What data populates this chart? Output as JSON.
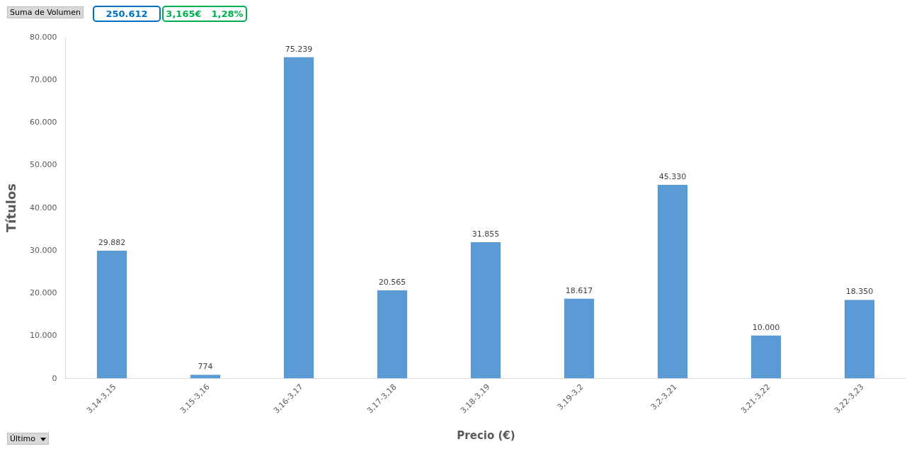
{
  "chart_data": {
    "type": "bar",
    "xlabel": "Precio (€)",
    "ylabel": "Títulos",
    "categories": [
      "3,14-3,15",
      "3,15-3,16",
      "3,16-3,17",
      "3,17-3,18",
      "3,18-3,19",
      "3,19-3,2",
      "3,2-3,21",
      "3,21-3,22",
      "3,22-3,23"
    ],
    "values": [
      29882,
      774,
      75239,
      20565,
      31855,
      18617,
      45330,
      10000,
      18350
    ],
    "value_labels": [
      "29.882",
      "774",
      "75.239",
      "20.565",
      "31.855",
      "18.617",
      "45.330",
      "10.000",
      "18.350"
    ],
    "color": "#5b9bd5",
    "ylim": [
      0,
      80000
    ],
    "yticks": [
      {
        "value": 0,
        "label": "0"
      },
      {
        "value": 10000,
        "label": "10.000"
      },
      {
        "value": 20000,
        "label": "20.000"
      },
      {
        "value": 30000,
        "label": "30.000"
      },
      {
        "value": 40000,
        "label": "40.000"
      },
      {
        "value": 50000,
        "label": "50.000"
      },
      {
        "value": 60000,
        "label": "60.000"
      },
      {
        "value": 70000,
        "label": "70.000"
      },
      {
        "value": 80000,
        "label": "80.000"
      }
    ],
    "grid": false,
    "annotations": [
      "Suma de Volumen",
      "250.612",
      "3,165€",
      "1,28%",
      "Último"
    ]
  }
}
